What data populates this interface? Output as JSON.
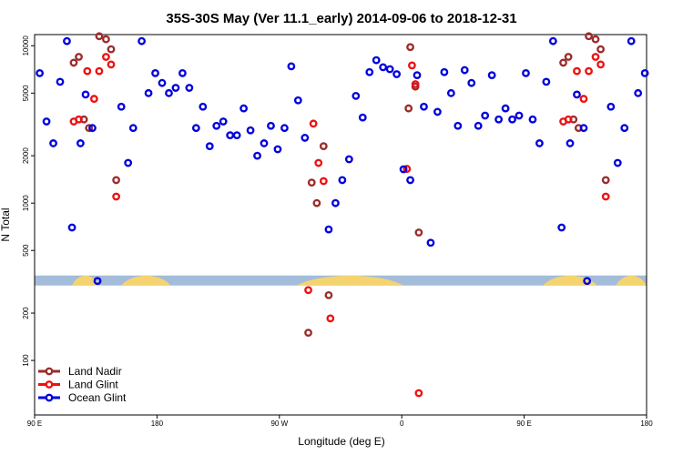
{
  "chart_data": {
    "type": "scatter",
    "title": "35S-30S May (Ver 11.1_early)   2014-09-06 to 2018-12-31",
    "xlabel": "Longitude (deg E)",
    "ylabel": "N Total",
    "xlim": [
      90,
      450
    ],
    "y_scale": "log",
    "ylim": [
      55,
      14000
    ],
    "x_ticks": [
      {
        "value": 90,
        "label": "90 E"
      },
      {
        "value": 162,
        "label": "180"
      },
      {
        "value": 234,
        "label": "90 W"
      },
      {
        "value": 306,
        "label": "0"
      },
      {
        "value": 378,
        "label": "90 E"
      },
      {
        "value": 450,
        "label": "180"
      }
    ],
    "y_ticks_upper": [
      {
        "value": 500,
        "label": "500"
      },
      {
        "value": 1000,
        "label": "1000"
      },
      {
        "value": 2000,
        "label": "2000"
      },
      {
        "value": 5000,
        "label": "5000"
      },
      {
        "value": 10000,
        "label": "10000"
      }
    ],
    "y_ticks_lower": [
      {
        "value": 100,
        "label": "100"
      },
      {
        "value": 200,
        "label": "200"
      }
    ],
    "land_strip": {
      "y_value": 320,
      "ocean_color": "#a3bcd9",
      "land_color": "#f5d46f",
      "land_spans": [
        [
          112,
          128
        ],
        [
          141,
          170
        ],
        [
          244,
          307
        ],
        [
          389,
          421
        ],
        [
          432,
          457
        ]
      ]
    },
    "series": [
      {
        "name": "Land Nadir",
        "color": "#9b2c2c",
        "points": [
          [
            113,
            7800
          ],
          [
            116,
            8500
          ],
          [
            119,
            3400
          ],
          [
            122,
            3000
          ],
          [
            128,
            11500
          ],
          [
            132,
            11000
          ],
          [
            135,
            9500
          ],
          [
            138,
            1400
          ],
          [
            253,
            1350
          ],
          [
            256,
            1000
          ],
          [
            260,
            2300
          ],
          [
            263,
            260
          ],
          [
            251,
            150
          ],
          [
            310,
            4000
          ],
          [
            311,
            9800
          ],
          [
            314,
            5500
          ],
          [
            316,
            650
          ],
          [
            401,
            7800
          ],
          [
            404,
            8500
          ],
          [
            407,
            3400
          ],
          [
            410,
            3000
          ],
          [
            416,
            11500
          ],
          [
            420,
            11000
          ],
          [
            423,
            9500
          ],
          [
            426,
            1400
          ]
        ]
      },
      {
        "name": "Land Glint",
        "color": "#ee1111",
        "points": [
          [
            113,
            3300
          ],
          [
            116,
            3400
          ],
          [
            121,
            6900
          ],
          [
            125,
            4600
          ],
          [
            128,
            6900
          ],
          [
            132,
            8500
          ],
          [
            135,
            7600
          ],
          [
            138,
            1100
          ],
          [
            251,
            280
          ],
          [
            254,
            3200
          ],
          [
            257,
            1800
          ],
          [
            260,
            1380
          ],
          [
            264,
            185
          ],
          [
            309,
            1650
          ],
          [
            312,
            7500
          ],
          [
            314,
            5700
          ],
          [
            316,
            62
          ],
          [
            401,
            3300
          ],
          [
            404,
            3400
          ],
          [
            409,
            6900
          ],
          [
            413,
            4600
          ],
          [
            416,
            6900
          ],
          [
            420,
            8500
          ],
          [
            423,
            7600
          ],
          [
            426,
            1100
          ]
        ]
      },
      {
        "name": "Ocean Glint",
        "color": "#0000dd",
        "points": [
          [
            93,
            6700
          ],
          [
            97,
            3300
          ],
          [
            101,
            2400
          ],
          [
            105,
            5900
          ],
          [
            109,
            10700
          ],
          [
            112,
            700
          ],
          [
            117,
            2400
          ],
          [
            120,
            4900
          ],
          [
            124,
            3000
          ],
          [
            127,
            320
          ],
          [
            141,
            4100
          ],
          [
            145,
            1800
          ],
          [
            148,
            3000
          ],
          [
            153,
            10700
          ],
          [
            157,
            5000
          ],
          [
            161,
            6700
          ],
          [
            165,
            5800
          ],
          [
            169,
            5000
          ],
          [
            173,
            5400
          ],
          [
            177,
            6700
          ],
          [
            181,
            5400
          ],
          [
            185,
            3000
          ],
          [
            189,
            4100
          ],
          [
            193,
            2300
          ],
          [
            197,
            3100
          ],
          [
            201,
            3300
          ],
          [
            205,
            2700
          ],
          [
            209,
            2700
          ],
          [
            213,
            4000
          ],
          [
            217,
            2900
          ],
          [
            221,
            2000
          ],
          [
            225,
            2400
          ],
          [
            229,
            3100
          ],
          [
            233,
            2200
          ],
          [
            237,
            3000
          ],
          [
            241,
            7400
          ],
          [
            245,
            4500
          ],
          [
            249,
            2600
          ],
          [
            263,
            680
          ],
          [
            267,
            1000
          ],
          [
            271,
            1400
          ],
          [
            275,
            1900
          ],
          [
            279,
            4800
          ],
          [
            283,
            3500
          ],
          [
            287,
            6800
          ],
          [
            291,
            8100
          ],
          [
            295,
            7300
          ],
          [
            299,
            7100
          ],
          [
            303,
            6600
          ],
          [
            307,
            1640
          ],
          [
            311,
            1400
          ],
          [
            315,
            6500
          ],
          [
            319,
            4100
          ],
          [
            323,
            560
          ],
          [
            327,
            3800
          ],
          [
            331,
            6800
          ],
          [
            335,
            5000
          ],
          [
            339,
            3100
          ],
          [
            343,
            7000
          ],
          [
            347,
            5800
          ],
          [
            351,
            3100
          ],
          [
            355,
            3600
          ],
          [
            359,
            6500
          ],
          [
            363,
            3400
          ],
          [
            367,
            4000
          ],
          [
            371,
            3400
          ],
          [
            375,
            3600
          ],
          [
            379,
            6700
          ],
          [
            383,
            3400
          ],
          [
            387,
            2400
          ],
          [
            391,
            5900
          ],
          [
            395,
            10700
          ],
          [
            400,
            700
          ],
          [
            405,
            2400
          ],
          [
            409,
            4900
          ],
          [
            413,
            3000
          ],
          [
            415,
            320
          ],
          [
            429,
            4100
          ],
          [
            433,
            1800
          ],
          [
            437,
            3000
          ],
          [
            441,
            10700
          ],
          [
            445,
            5000
          ],
          [
            449,
            6700
          ]
        ]
      }
    ],
    "legend": {
      "position": "bottom-left",
      "entries": [
        "Land Nadir",
        "Land Glint",
        "Ocean Glint"
      ]
    }
  }
}
